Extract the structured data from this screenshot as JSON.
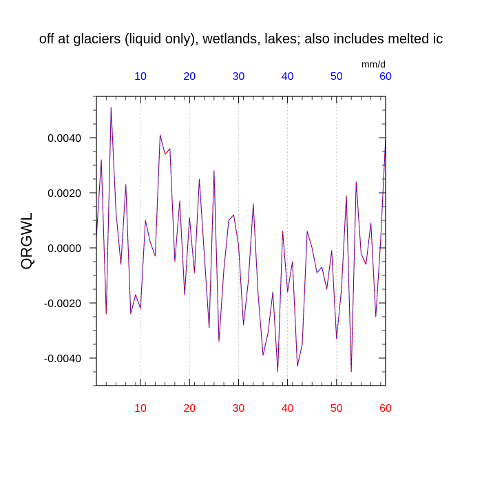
{
  "chart_data": {
    "type": "line",
    "title": "off at glaciers (liquid only), wetlands, lakes; also includes melted ic",
    "ylabel": "QRGWL",
    "units": "mm/d",
    "xlim": [
      1,
      60
    ],
    "ylim": [
      -0.005,
      0.0055
    ],
    "x_ticks": [
      10,
      20,
      30,
      40,
      50,
      60
    ],
    "x_tick_labels": [
      "10",
      "20",
      "30",
      "40",
      "50",
      "60"
    ],
    "y_ticks": [
      -0.004,
      -0.002,
      0.0,
      0.002,
      0.004
    ],
    "y_tick_labels": [
      "-0.0040",
      "-0.0020",
      "0.0000",
      "0.0020",
      "0.0040"
    ],
    "grid_x": true,
    "colors": {
      "bottom_ticks": "#ff0000",
      "top_ticks": "#0000ff",
      "line_a": "#0000ff",
      "line_b": "#ff0000"
    },
    "series": [
      {
        "x": [
          1,
          2,
          3,
          4,
          5,
          6,
          7,
          8,
          9,
          10,
          11,
          12,
          13,
          14,
          15,
          16,
          17,
          18,
          19,
          20,
          21,
          22,
          23,
          24,
          25,
          26,
          27,
          28,
          29,
          30,
          31,
          32,
          33,
          34,
          35,
          36,
          37,
          38,
          39,
          40,
          41,
          42,
          43,
          44,
          45,
          46,
          47,
          48,
          49,
          50,
          51,
          52,
          53,
          54,
          55,
          56,
          57,
          58,
          59,
          60
        ],
        "values": [
          0.0004,
          0.0032,
          -0.0024,
          0.0051,
          0.0013,
          -0.0006,
          0.0023,
          -0.0024,
          -0.0017,
          -0.0022,
          0.001,
          0.0002,
          -0.0003,
          0.0041,
          0.0034,
          0.0036,
          -0.0005,
          0.0017,
          -0.0017,
          0.0011,
          -0.0009,
          0.0025,
          -0.0002,
          -0.0029,
          0.0028,
          -0.0034,
          -0.0008,
          0.001,
          0.0012,
          0.0001,
          -0.0028,
          -0.0012,
          0.0016,
          -0.0017,
          -0.0039,
          -0.0031,
          -0.0016,
          -0.0045,
          0.0006,
          -0.0016,
          -0.0005,
          -0.0043,
          -0.0035,
          0.0006,
          0.0,
          -0.0009,
          -0.0007,
          -0.0015,
          -0.0001,
          -0.0033,
          -0.0015,
          0.0019,
          -0.0045,
          0.0024,
          -0.0002,
          -0.0006,
          0.0009,
          -0.0025,
          0.0003,
          0.004
        ]
      }
    ]
  }
}
